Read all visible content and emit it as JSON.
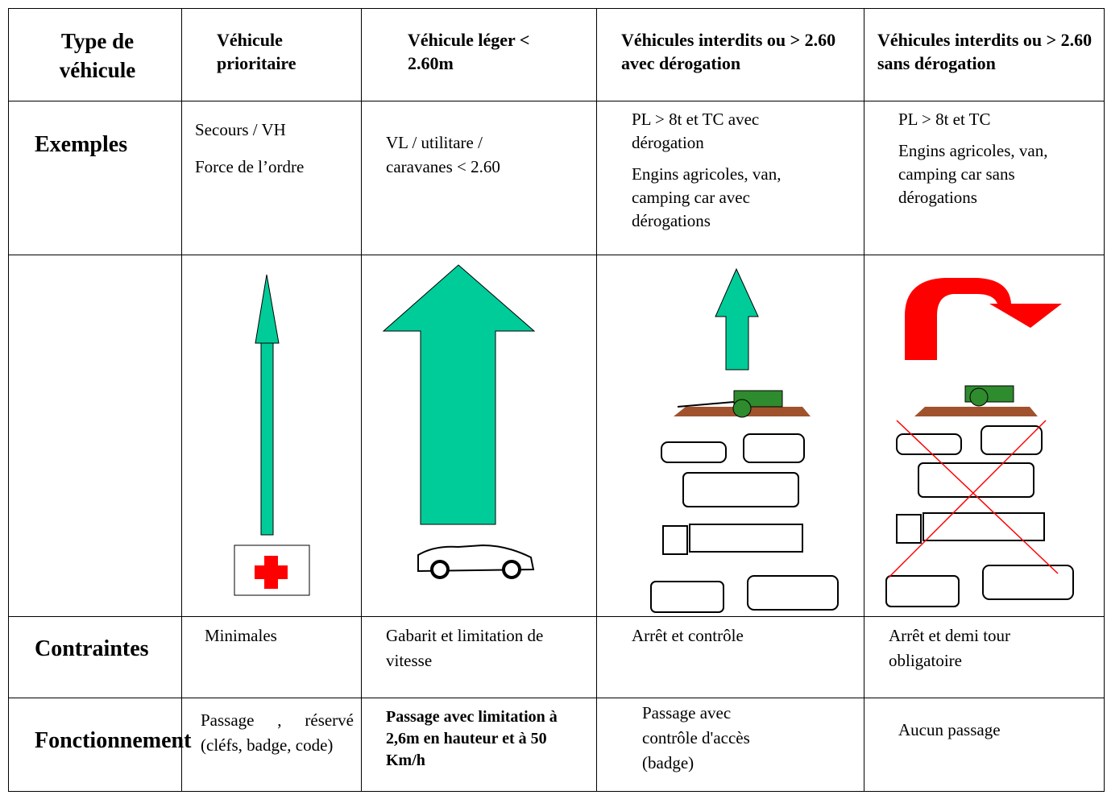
{
  "table": {
    "header": [
      "Type de véhicule",
      "Véhicule prioritaire",
      "Véhicule léger < 2.60m",
      "Véhicules interdits ou > 2.60 avec dérogation",
      "Véhicules interdits ou > 2.60 sans dérogation"
    ],
    "rows": [
      [
        "Exemples",
        [
          "Secours / VH",
          "Force de l’ordre"
        ],
        [
          "VL / utilitare / caravanes < 2.60"
        ],
        [
          "PL > 8t et TC avec dérogation",
          "Engins agricoles, van, camping car avec dérogations"
        ],
        [
          "PL > 8t et TC",
          "Engins agricoles, van, camping car sans dérogations"
        ]
      ],
      [
        "Contraintes",
        [
          "Minimales"
        ],
        [
          "Gabarit et limitation de vitesse"
        ],
        [
          "Arrêt et contrôle"
        ],
        [
          "Arrêt et demi tour obligatoire"
        ]
      ],
      [
        "Fonctionnement",
        [
          "Passage , réservé (cléfs, badge, code)"
        ],
        [
          "Passage avec limitation à 2,6m en hauteur et à 50 Km/h"
        ],
        [
          "Passage avec contrôle d'accès (badge)"
        ],
        [
          "Aucun passage"
        ]
      ]
    ]
  }
}
